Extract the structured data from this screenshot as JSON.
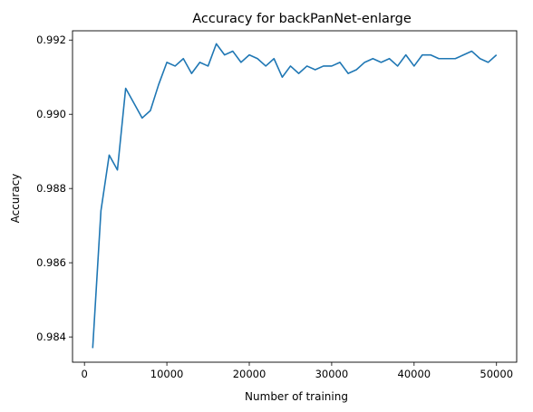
{
  "chart_data": {
    "type": "line",
    "title": "Accuracy for backPanNet-enlarge",
    "xlabel": "Number of training",
    "ylabel": "Accuracy",
    "xlim": [
      -1450,
      52450
    ],
    "ylim": [
      0.98332,
      0.99225
    ],
    "xticks": [
      0,
      10000,
      20000,
      30000,
      40000,
      50000
    ],
    "xtick_labels": [
      "0",
      "10000",
      "20000",
      "30000",
      "40000",
      "50000"
    ],
    "yticks": [
      0.984,
      0.986,
      0.988,
      0.99,
      0.992
    ],
    "ytick_labels": [
      "0.984",
      "0.986",
      "0.988",
      "0.990",
      "0.992"
    ],
    "grid": false,
    "line_color": "#1f77b4",
    "series": [
      {
        "x": [
          1000,
          2000,
          3000,
          4000,
          5000,
          6000,
          7000,
          8000,
          9000,
          10000,
          11000,
          12000,
          13000,
          14000,
          15000,
          16000,
          17000,
          18000,
          19000,
          20000,
          21000,
          22000,
          23000,
          24000,
          25000,
          26000,
          27000,
          28000,
          29000,
          30000,
          31000,
          32000,
          33000,
          34000,
          35000,
          36000,
          37000,
          38000,
          39000,
          40000,
          41000,
          42000,
          43000,
          44000,
          45000,
          46000,
          47000,
          48000,
          49000,
          50000
        ],
        "values": [
          0.9837,
          0.9874,
          0.9889,
          0.9885,
          0.9907,
          0.9903,
          0.9899,
          0.9901,
          0.9908,
          0.9914,
          0.9913,
          0.9915,
          0.9911,
          0.9914,
          0.9913,
          0.9919,
          0.9916,
          0.9917,
          0.9914,
          0.9916,
          0.9915,
          0.9913,
          0.9915,
          0.991,
          0.9913,
          0.9911,
          0.9913,
          0.9912,
          0.9913,
          0.9913,
          0.9914,
          0.9911,
          0.9912,
          0.9914,
          0.9915,
          0.9914,
          0.9915,
          0.9913,
          0.9916,
          0.9913,
          0.9916,
          0.9916,
          0.9915,
          0.9915,
          0.9915,
          0.9916,
          0.9917,
          0.9915,
          0.9914,
          0.9916
        ]
      }
    ]
  }
}
